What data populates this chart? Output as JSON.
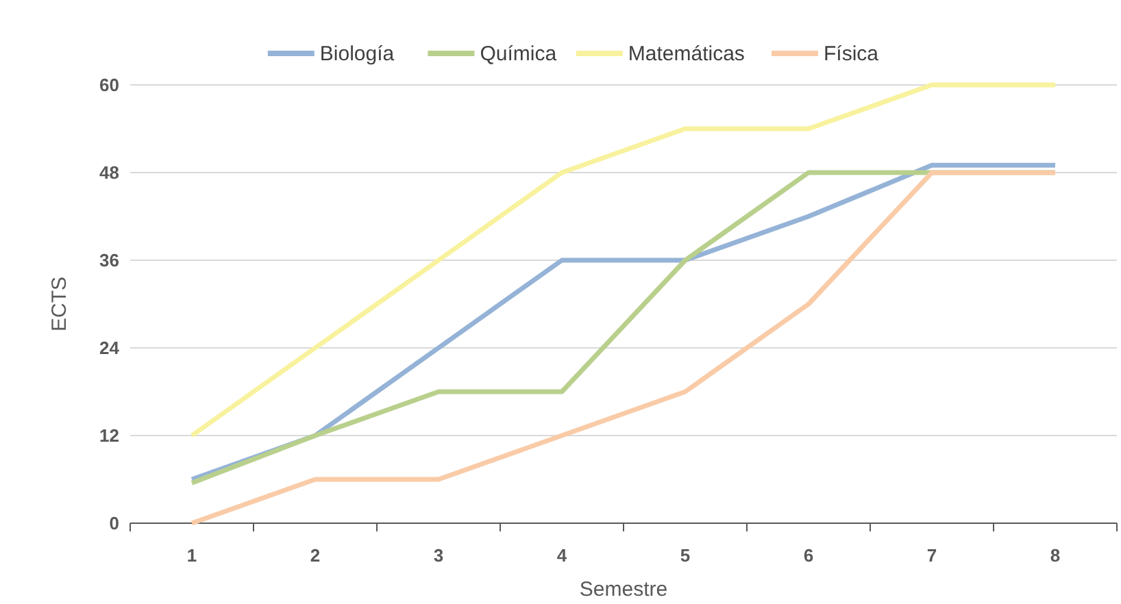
{
  "chart_data": {
    "type": "line",
    "xlabel": "Semestre",
    "ylabel": "ECTS",
    "categories": [
      "1",
      "2",
      "3",
      "4",
      "5",
      "6",
      "7",
      "8"
    ],
    "series": [
      {
        "name": "Biología",
        "color": "#95b3d7",
        "values": [
          6,
          12,
          24,
          36,
          36,
          42,
          49,
          49
        ]
      },
      {
        "name": "Química",
        "color": "#b9d08c",
        "values": [
          5.5,
          12,
          18,
          18,
          36,
          48,
          48,
          48
        ]
      },
      {
        "name": "Matemáticas",
        "color": "#f8f29e",
        "values": [
          12,
          24,
          36,
          48,
          54,
          54,
          60,
          60
        ]
      },
      {
        "name": "Física",
        "color": "#f9cba7",
        "values": [
          0,
          6,
          6,
          12,
          18,
          30,
          48,
          48
        ]
      }
    ],
    "ylim": [
      0,
      60
    ],
    "yticks": [
      0,
      12,
      24,
      36,
      48,
      60
    ],
    "grid": "y",
    "legend": "top",
    "marker": "none",
    "line_style": "solid"
  }
}
